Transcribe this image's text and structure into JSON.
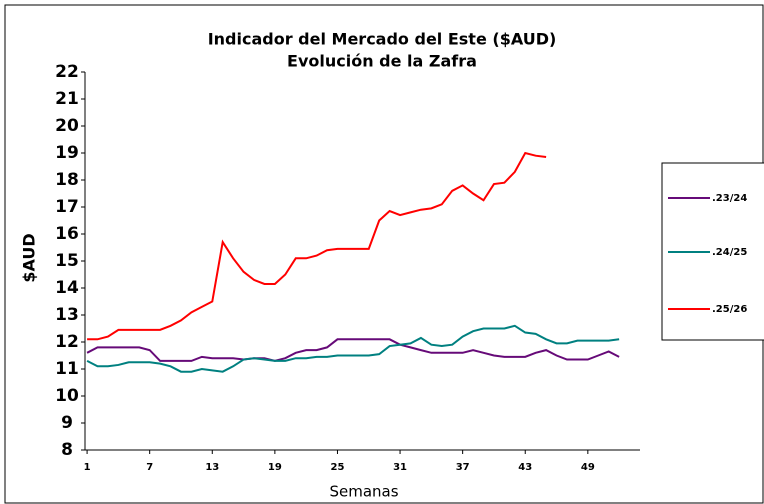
{
  "chart_data": {
    "type": "line",
    "title": "Indicador del Mercado del Este ($AUD)",
    "subtitle": "Evolución de la Zafra",
    "x_label": "Semanas",
    "y_label": "$AUD",
    "x": [
      1,
      2,
      3,
      4,
      5,
      6,
      7,
      8,
      9,
      10,
      11,
      12,
      13,
      14,
      15,
      16,
      17,
      18,
      19,
      20,
      21,
      22,
      23,
      24,
      25,
      26,
      27,
      28,
      29,
      30,
      31,
      32,
      33,
      34,
      35,
      36,
      37,
      38,
      39,
      40,
      41,
      42,
      43,
      44,
      45,
      46,
      47,
      48,
      49,
      50,
      51,
      52
    ],
    "series": [
      {
        "name": ".23/24",
        "color": "#660a78",
        "values": [
          11.6,
          11.8,
          11.8,
          11.8,
          11.8,
          11.8,
          11.7,
          11.3,
          11.3,
          11.3,
          11.3,
          11.45,
          11.4,
          11.4,
          11.4,
          11.35,
          11.4,
          11.4,
          11.3,
          11.4,
          11.6,
          11.7,
          11.7,
          11.8,
          12.1,
          12.1,
          12.1,
          12.1,
          12.1,
          12.1,
          11.9,
          11.8,
          11.7,
          11.6,
          11.6,
          11.6,
          11.6,
          11.7,
          11.6,
          11.5,
          11.45,
          11.45,
          11.45,
          11.6,
          11.7,
          11.5,
          11.35,
          11.35,
          11.35,
          11.5,
          11.65,
          11.45
        ]
      },
      {
        "name": ".24/25",
        "color": "#008080",
        "values": [
          11.3,
          11.1,
          11.1,
          11.15,
          11.25,
          11.25,
          11.25,
          11.2,
          11.1,
          10.9,
          10.9,
          11.0,
          10.95,
          10.9,
          11.1,
          11.35,
          11.4,
          11.35,
          11.3,
          11.3,
          11.4,
          11.4,
          11.45,
          11.45,
          11.5,
          11.5,
          11.5,
          11.5,
          11.55,
          11.85,
          11.9,
          11.95,
          12.15,
          11.9,
          11.85,
          11.9,
          12.2,
          12.4,
          12.5,
          12.5,
          12.5,
          12.6,
          12.35,
          12.3,
          12.1,
          11.95,
          11.95,
          12.05,
          12.05,
          12.05,
          12.05,
          12.1
        ]
      },
      {
        "name": ".25/26",
        "color": "#ff0000",
        "values": [
          12.1,
          12.1,
          12.2,
          12.45,
          12.45,
          12.45,
          12.45,
          12.45,
          12.6,
          12.8,
          13.1,
          13.3,
          13.5,
          15.7,
          15.1,
          14.6,
          14.3,
          14.15,
          14.15,
          14.5,
          15.1,
          15.1,
          15.2,
          15.4,
          15.45,
          15.45,
          15.45,
          15.45,
          16.5,
          16.85,
          16.7,
          16.8,
          16.9,
          16.95,
          17.1,
          17.6,
          17.8,
          17.5,
          17.25,
          17.85,
          17.9,
          18.3,
          19.0,
          18.9,
          18.85,
          null,
          null,
          null,
          null,
          null,
          null,
          null
        ]
      }
    ],
    "xlim": [
      0.8,
      54
    ],
    "xticks": [
      1,
      7,
      13,
      19,
      25,
      31,
      37,
      43,
      49
    ],
    "ylim": [
      8,
      22
    ],
    "yticks": [
      8,
      9,
      10,
      11,
      12,
      13,
      14,
      15,
      16,
      17,
      18,
      19,
      20,
      21,
      22
    ],
    "grid": false
  }
}
